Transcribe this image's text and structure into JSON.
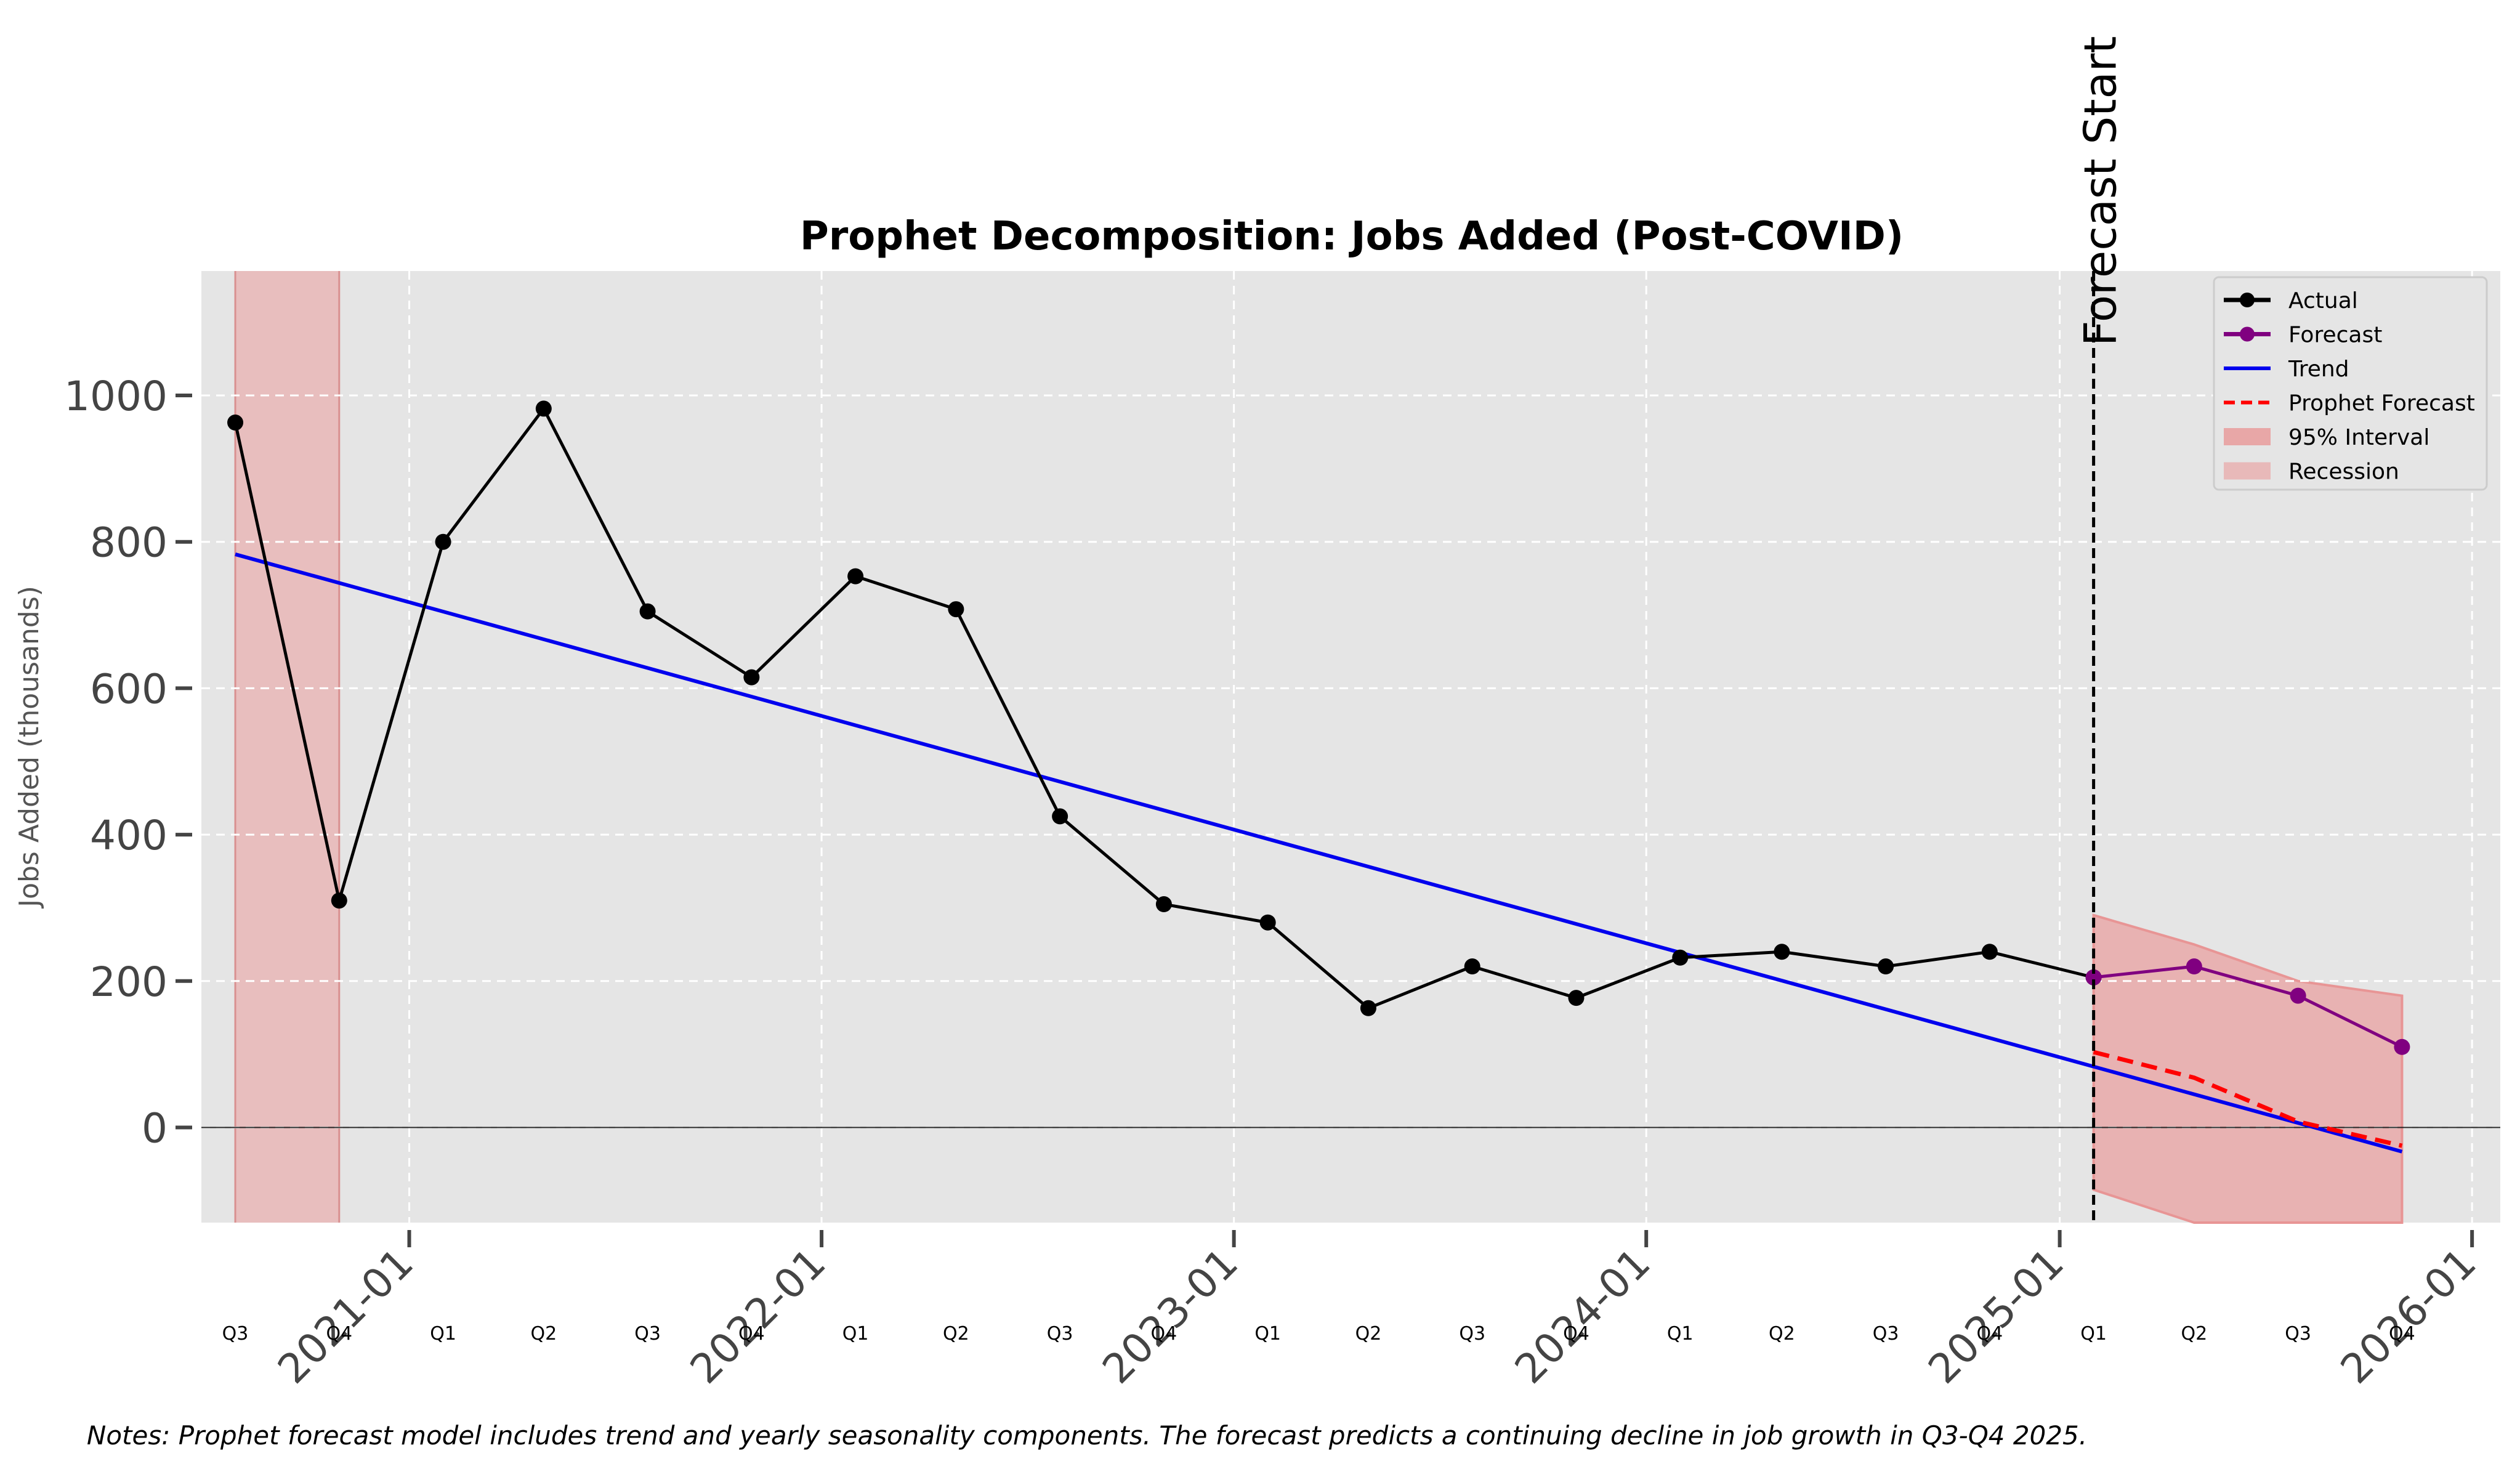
{
  "chart_data": {
    "type": "line",
    "title": "Prophet Decomposition: Jobs Added (Post-COVID)",
    "xlabel": "",
    "ylabel": "Jobs Added (thousands)",
    "notes": "Notes: Prophet forecast model includes trend and yearly seasonality components. The forecast predicts a continuing decline in job growth in Q3-Q4 2025.",
    "ylim": [
      -130,
      1170
    ],
    "xlim": [
      "2020-07-01",
      "2026-01-26"
    ],
    "yticks": [
      0,
      200,
      400,
      600,
      800,
      1000
    ],
    "xticks": [
      "2021-01",
      "2022-01",
      "2023-01",
      "2024-01",
      "2025-01",
      "2026-01"
    ],
    "grid": true,
    "legend_position": "top-right",
    "quarters": [
      "Q3",
      "Q4",
      "Q1",
      "Q2",
      "Q3",
      "Q4",
      "Q1",
      "Q2",
      "Q3",
      "Q4",
      "Q1",
      "Q2",
      "Q3",
      "Q4",
      "Q1",
      "Q2",
      "Q3",
      "Q4",
      "Q1",
      "Q2",
      "Q3",
      "Q4"
    ],
    "quarter_dates": [
      "2020-07-31",
      "2020-10-31",
      "2021-01-31",
      "2021-04-30",
      "2021-07-31",
      "2021-10-31",
      "2022-01-31",
      "2022-04-30",
      "2022-07-31",
      "2022-10-31",
      "2023-01-31",
      "2023-04-30",
      "2023-07-31",
      "2023-10-31",
      "2024-01-31",
      "2024-04-30",
      "2024-07-31",
      "2024-10-31",
      "2025-01-31",
      "2025-04-30",
      "2025-07-31",
      "2025-10-31"
    ],
    "series": [
      {
        "name": "Actual",
        "color": "#000000",
        "x": [
          "2020-07-31",
          "2020-10-31",
          "2021-01-31",
          "2021-04-30",
          "2021-07-31",
          "2021-10-31",
          "2022-01-31",
          "2022-04-30",
          "2022-07-31",
          "2022-10-31",
          "2023-01-31",
          "2023-04-30",
          "2023-07-31",
          "2023-10-31",
          "2024-01-31",
          "2024-04-30",
          "2024-07-31",
          "2024-10-31",
          "2025-01-31"
        ],
        "values": [
          963,
          310,
          800,
          982,
          705,
          615,
          753,
          708,
          425,
          305,
          280,
          163,
          220,
          177,
          232,
          240,
          220,
          240,
          205
        ]
      },
      {
        "name": "Forecast",
        "color": "#800080",
        "x": [
          "2025-01-31",
          "2025-04-30",
          "2025-07-31",
          "2025-10-31"
        ],
        "values": [
          205,
          220,
          180,
          110
        ]
      },
      {
        "name": "Trend",
        "color": "#0000ee",
        "x": [
          "2020-07-31",
          "2025-10-31"
        ],
        "values": [
          783,
          -33
        ]
      },
      {
        "name": "Prophet Forecast",
        "color": "#ff0000",
        "x": [
          "2025-01-31",
          "2025-04-30",
          "2025-07-31",
          "2025-10-31"
        ],
        "values": [
          103,
          68,
          8,
          -25
        ]
      }
    ],
    "interval": {
      "name": "95% Interval",
      "color": "#e8a0a0",
      "x": [
        "2025-01-31",
        "2025-04-30",
        "2025-07-31",
        "2025-10-31"
      ],
      "lower": [
        -85,
        -135,
        -135,
        -135
      ],
      "upper": [
        290,
        250,
        200,
        180
      ]
    },
    "recession": {
      "name": "Recession",
      "color": "#e8b4b4",
      "start": "2020-07-31",
      "end": "2020-10-31"
    },
    "forecast_start": {
      "label": "Forecast Start",
      "date": "2025-01-31"
    }
  }
}
